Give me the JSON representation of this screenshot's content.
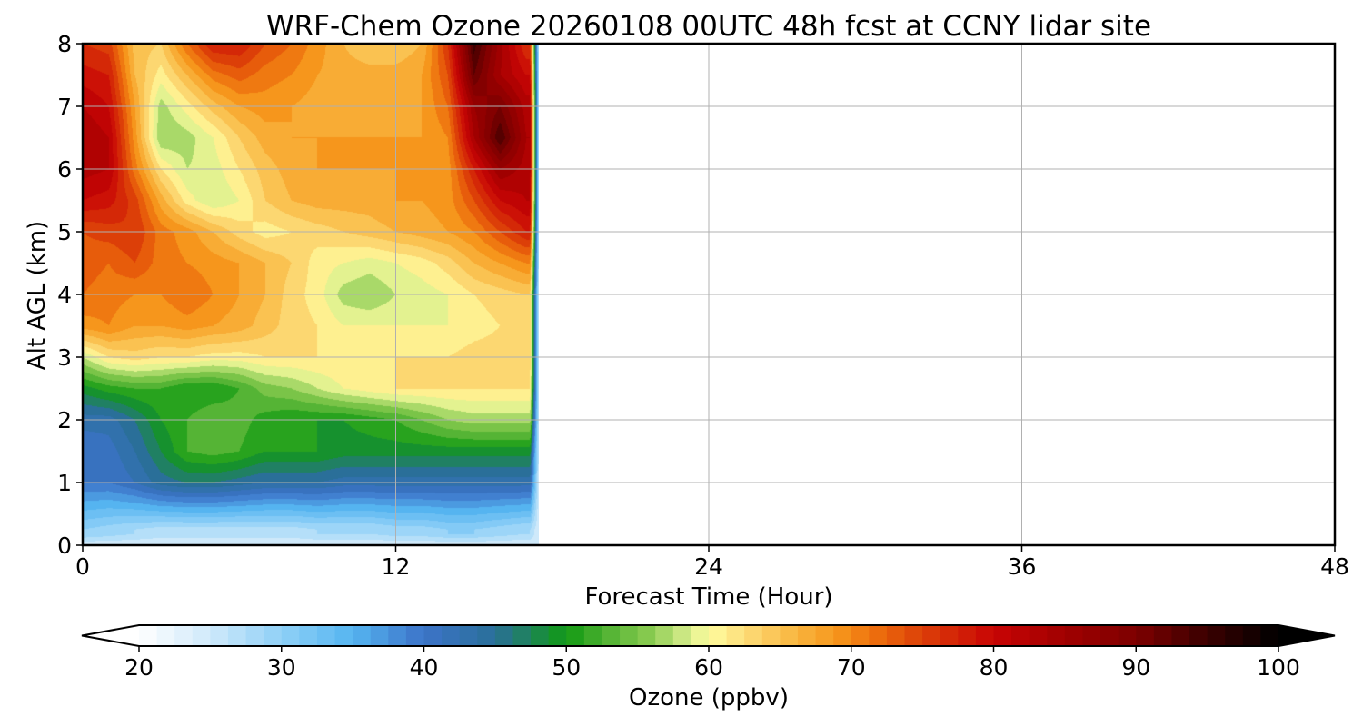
{
  "chart_data": {
    "type": "heatmap",
    "title": "WRF-Chem Ozone  20260108 00UTC 48h fcst at CCNY lidar site",
    "xlabel": "Forecast Time (Hour)",
    "ylabel": "Alt AGL (km)",
    "xlim": [
      0,
      48
    ],
    "ylim": [
      0,
      8
    ],
    "x_ticks": [
      "0",
      "12",
      "24",
      "36",
      "48"
    ],
    "y_ticks": [
      "0",
      "1",
      "2",
      "3",
      "4",
      "5",
      "6",
      "7",
      "8"
    ],
    "grid": true,
    "data_coverage_hours": [
      0,
      17.5
    ],
    "x_hours": [
      0,
      1,
      2,
      3,
      4,
      5,
      6,
      7,
      8,
      9,
      10,
      11,
      12,
      13,
      14,
      15,
      16,
      17
    ],
    "y_km": [
      0.25,
      1,
      1.5,
      2,
      2.5,
      3,
      3.5,
      4,
      4.5,
      5,
      5.5,
      6,
      6.5,
      7,
      7.5,
      8
    ],
    "z_ppbv": [
      [
        30,
        29,
        28,
        27,
        27,
        27,
        27,
        27,
        27,
        28,
        28,
        28,
        29,
        29,
        30,
        30,
        29,
        28
      ],
      [
        40,
        40,
        42,
        45,
        46,
        46,
        45,
        44,
        44,
        44,
        43,
        43,
        43,
        43,
        43,
        43,
        43,
        43
      ],
      [
        40,
        41,
        44,
        48,
        52,
        53,
        52,
        50,
        50,
        50,
        49,
        49,
        49,
        49,
        49,
        49,
        49,
        49
      ],
      [
        43,
        43,
        46,
        50,
        52,
        54,
        53,
        51,
        50,
        50,
        50,
        51,
        52,
        54,
        56,
        57,
        57,
        57
      ],
      [
        49,
        51,
        52,
        52,
        50,
        50,
        52,
        55,
        56,
        58,
        60,
        61,
        62,
        62,
        62,
        62,
        62,
        62
      ],
      [
        58,
        62,
        63,
        62,
        62,
        61,
        61,
        62,
        62,
        62,
        62,
        62,
        62,
        62,
        62,
        63,
        63,
        63
      ],
      [
        69,
        70,
        68,
        68,
        69,
        68,
        67,
        65,
        63,
        62,
        60,
        60,
        60,
        60,
        60,
        61,
        62,
        63
      ],
      [
        72,
        71,
        70,
        70,
        72,
        70,
        68,
        66,
        63,
        61,
        57,
        56,
        58,
        59,
        60,
        62,
        63,
        64
      ],
      [
        73,
        72,
        74,
        71,
        70,
        69,
        68,
        66,
        64,
        61,
        60,
        59,
        60,
        61,
        63,
        66,
        68,
        70
      ],
      [
        74,
        75,
        76,
        71,
        69,
        66,
        63,
        61,
        62,
        63,
        64,
        65,
        66,
        67,
        68,
        70,
        74,
        78
      ],
      [
        80,
        79,
        75,
        67,
        61,
        58,
        60,
        64,
        66,
        67,
        67,
        67,
        68,
        68,
        69,
        74,
        80,
        82
      ],
      [
        83,
        82,
        71,
        62,
        58,
        59,
        62,
        65,
        67,
        68,
        68,
        68,
        68,
        68,
        69,
        78,
        86,
        83
      ],
      [
        84,
        82,
        69,
        56,
        57,
        60,
        64,
        67,
        68,
        68,
        68,
        68,
        68,
        68,
        70,
        84,
        94,
        84
      ],
      [
        82,
        80,
        68,
        57,
        61,
        65,
        68,
        69,
        68,
        67,
        67,
        67,
        67,
        68,
        72,
        86,
        90,
        83
      ],
      [
        79,
        78,
        66,
        61,
        66,
        71,
        73,
        71,
        70,
        68,
        67,
        67,
        67,
        68,
        74,
        92,
        84,
        80
      ],
      [
        76,
        75,
        65,
        64,
        72,
        78,
        78,
        74,
        72,
        69,
        66,
        64,
        64,
        66,
        76,
        95,
        85,
        76
      ]
    ],
    "colorbar": {
      "label": "Ozone  (ppbv)",
      "min": 20,
      "max": 100,
      "extend": "both",
      "ticks": [
        "20",
        "30",
        "40",
        "50",
        "60",
        "70",
        "80",
        "90",
        "100"
      ],
      "color_stops": [
        [
          20,
          "#ffffff"
        ],
        [
          25,
          "#cfe9fa"
        ],
        [
          30,
          "#8fd0f7"
        ],
        [
          35,
          "#55b4f0"
        ],
        [
          40,
          "#3c73c8"
        ],
        [
          45,
          "#2a6f99"
        ],
        [
          50,
          "#119a13"
        ],
        [
          53,
          "#55b435"
        ],
        [
          56,
          "#8ccc52"
        ],
        [
          58,
          "#c6e680"
        ],
        [
          60,
          "#fffda0"
        ],
        [
          63,
          "#fcd771"
        ],
        [
          66,
          "#f9b741"
        ],
        [
          69,
          "#f6961c"
        ],
        [
          72,
          "#ec6a0c"
        ],
        [
          75,
          "#dc3f08"
        ],
        [
          80,
          "#c80505"
        ],
        [
          85,
          "#a00000"
        ],
        [
          90,
          "#7d0000"
        ],
        [
          95,
          "#3a0000"
        ],
        [
          100,
          "#000000"
        ]
      ]
    }
  }
}
